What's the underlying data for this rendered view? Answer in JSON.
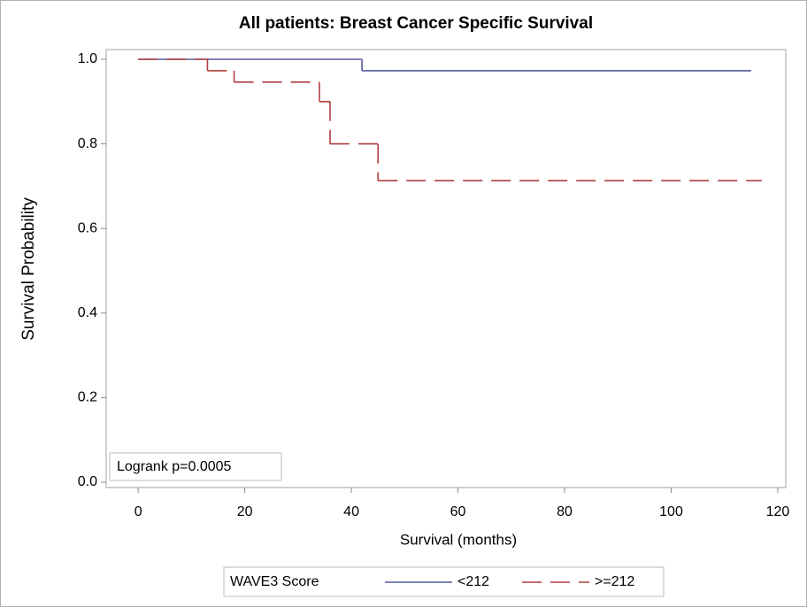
{
  "chart_data": {
    "type": "line",
    "drawstyle": "steps-post",
    "title": "All patients: Breast Cancer Specific Survival",
    "x_label": "Survival (months)",
    "y_label": "Survival Probability",
    "annotation": "Logrank p=0.0005",
    "legend_title": "WAVE3 Score",
    "legend_position": "bottom",
    "xlim": [
      -6,
      121.5
    ],
    "ylim": [
      -0.0125,
      1.023
    ],
    "xticks": [
      0,
      20,
      40,
      60,
      80,
      100,
      120
    ],
    "yticks": [
      {
        "value": 0,
        "label": "0.0"
      },
      0.2,
      0.4,
      0.6,
      0.8,
      {
        "value": 1,
        "label": "1.0"
      }
    ],
    "grid": false,
    "series": [
      {
        "name": "<212",
        "color": "#555a9c",
        "dashed": false,
        "x": [
          0,
          42,
          115
        ],
        "values": [
          1.0,
          0.973,
          0.973
        ]
      },
      {
        "name": ">=212",
        "color": "#b03c3c",
        "dashed": true,
        "x": [
          0,
          13,
          18,
          34,
          36,
          45,
          117
        ],
        "values": [
          1.0,
          0.973,
          0.946,
          0.9,
          0.8,
          0.713,
          0.713
        ]
      }
    ]
  }
}
